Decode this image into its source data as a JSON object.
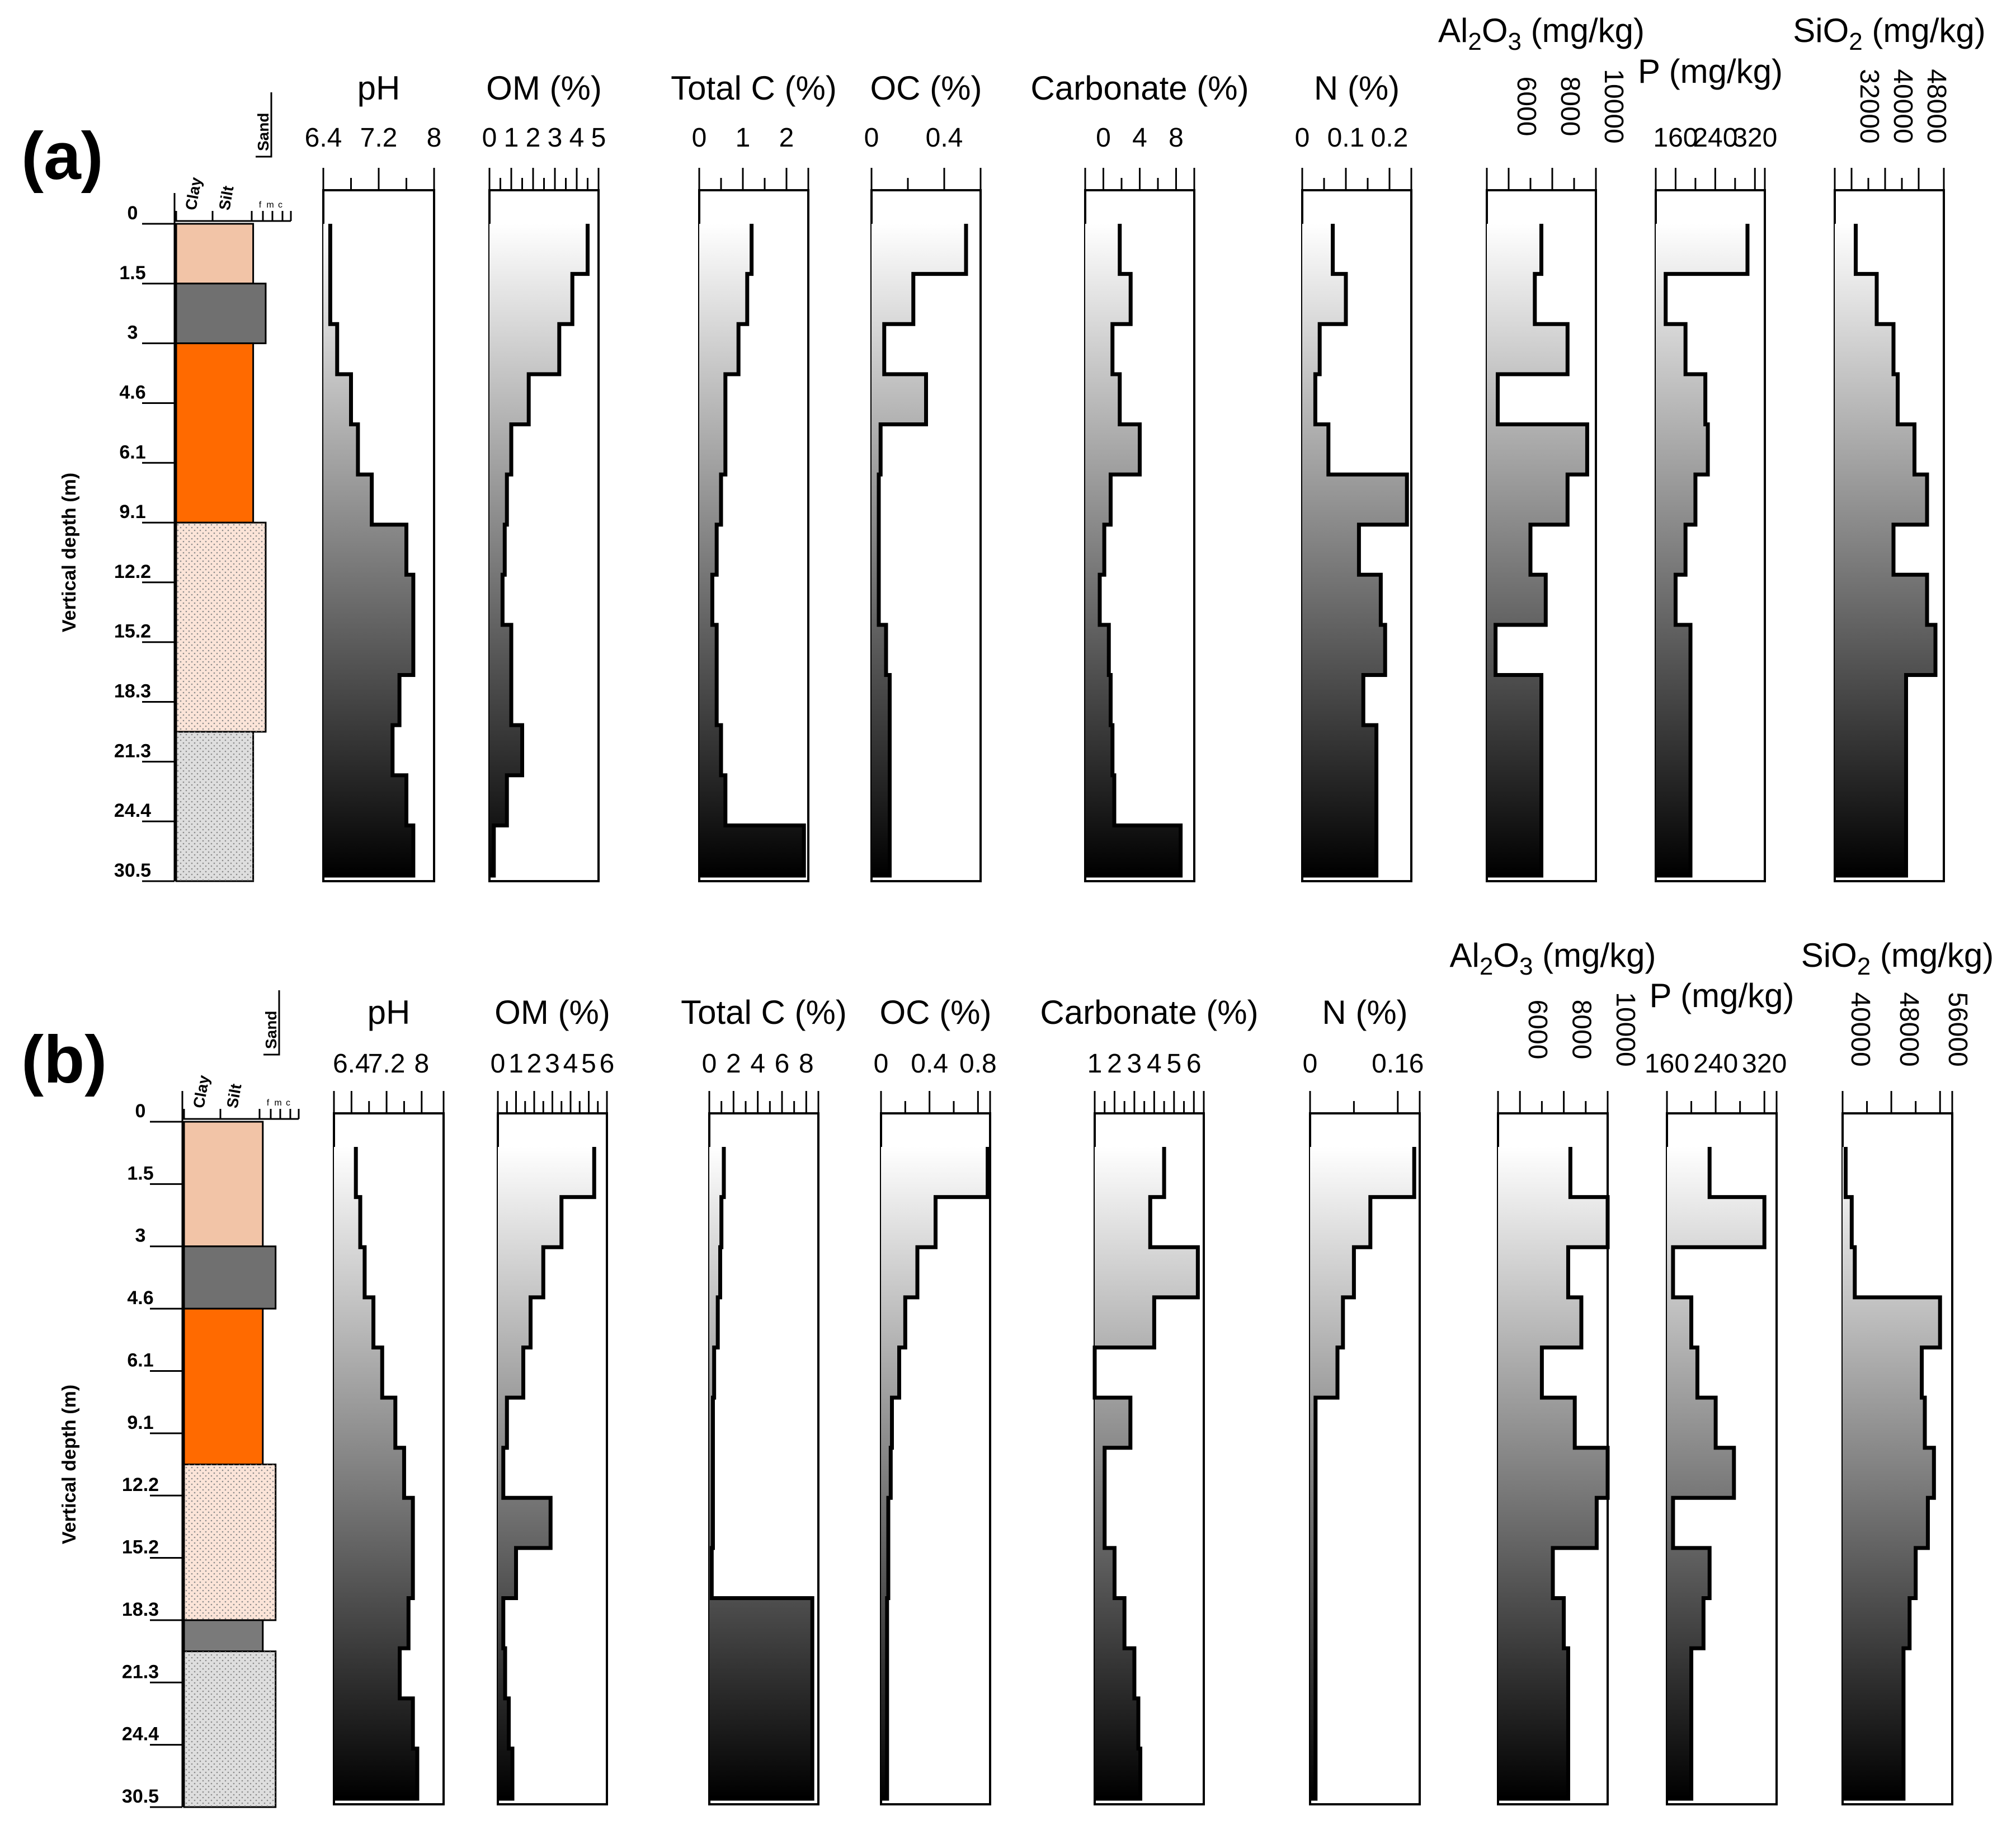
{
  "chart_data": [
    {
      "panel": "(a)",
      "type": "line",
      "ylabel": "Vertical depth (m)",
      "depth_ticks": [
        "0",
        "1.5",
        "3",
        "4.6",
        "6.1",
        "9.1",
        "12.2",
        "15.2",
        "18.3",
        "21.3",
        "24.4",
        "30.5"
      ],
      "lithology_header": {
        "clay": "Clay",
        "silt": "Silt",
        "sand": "Sand",
        "sub": [
          "f",
          "m",
          "c"
        ]
      },
      "lithology": [
        {
          "from": 0,
          "to": 1,
          "color": "#f2c4a7",
          "width": 0.8,
          "pattern": false
        },
        {
          "from": 1,
          "to": 2,
          "color": "#707070",
          "width": 0.93,
          "pattern": false
        },
        {
          "from": 2,
          "to": 5,
          "color": "#ff6a00",
          "width": 0.8,
          "pattern": false
        },
        {
          "from": 5,
          "to": 8.5,
          "color": "#fbe4d8",
          "width": 0.93,
          "pattern": true
        },
        {
          "from": 8.5,
          "to": 11,
          "color": "#dedede",
          "width": 0.8,
          "pattern": true
        }
      ],
      "tracks": [
        {
          "title": "pH",
          "ticks": [
            {
              "value": 6.4,
              "label": "6.4"
            },
            {
              "value": 7.2,
              "label": "7.2"
            },
            {
              "value": 8,
              "label": "8"
            }
          ],
          "xlim": [
            6.4,
            8.0
          ],
          "minor_ticks": [
            6.8,
            7.6
          ],
          "values": [
            6.5,
            6.5,
            6.6,
            6.8,
            6.9,
            7.1,
            7.6,
            7.7,
            7.7,
            7.5,
            7.4,
            7.6,
            7.7
          ]
        },
        {
          "title": "OM (%)",
          "ticks": [
            {
              "value": 0,
              "label": "0"
            },
            {
              "value": 1,
              "label": "1"
            },
            {
              "value": 2,
              "label": "2"
            },
            {
              "value": 3,
              "label": "3"
            },
            {
              "value": 4,
              "label": "4"
            },
            {
              "value": 5,
              "label": "5"
            }
          ],
          "xlim": [
            0,
            5
          ],
          "minor_ticks": [
            0.5,
            1.5,
            2.5,
            3.5,
            4.5
          ],
          "values": [
            4.5,
            3.8,
            3.2,
            1.8,
            1.0,
            0.8,
            0.7,
            0.6,
            1.0,
            1.0,
            1.5,
            0.8,
            0.2
          ]
        },
        {
          "title": "Total C (%)",
          "ticks": [
            {
              "value": 0,
              "label": "0"
            },
            {
              "value": 1,
              "label": "1"
            },
            {
              "value": 2,
              "label": "2"
            }
          ],
          "xlim": [
            0,
            2.5
          ],
          "minor_ticks": [
            0.5,
            1.5
          ],
          "values": [
            1.2,
            1.1,
            0.9,
            0.6,
            0.6,
            0.5,
            0.4,
            0.3,
            0.4,
            0.4,
            0.5,
            0.6,
            2.4
          ]
        },
        {
          "title": "OC (%)",
          "ticks": [
            {
              "value": 0,
              "label": "0"
            },
            {
              "value": 0.4,
              "label": "0.4"
            }
          ],
          "xlim": [
            0,
            0.6
          ],
          "minor_ticks": [
            0.2
          ],
          "values": [
            0.52,
            0.23,
            0.07,
            0.3,
            0.05,
            0.04,
            0.04,
            0.04,
            0.08,
            0.1,
            0.1,
            0.1,
            0.1
          ]
        },
        {
          "title": "Carbonate (%)",
          "ticks": [
            {
              "value": 0,
              "label": "0"
            },
            {
              "value": 4,
              "label": "4"
            },
            {
              "value": 8,
              "label": "8"
            }
          ],
          "xlim": [
            -2,
            10
          ],
          "minor_ticks": [
            2,
            6
          ],
          "values": [
            1.8,
            3.0,
            1.0,
            1.8,
            4.0,
            0.8,
            0.1,
            -0.4,
            0.6,
            0.8,
            1.0,
            1.2,
            8.5
          ]
        },
        {
          "title": "N (%)",
          "ticks": [
            {
              "value": 0,
              "label": "0"
            },
            {
              "value": 0.1,
              "label": "0.1"
            },
            {
              "value": 0.2,
              "label": "0.2"
            }
          ],
          "xlim": [
            0,
            0.25
          ],
          "minor_ticks": [
            0.05,
            0.15
          ],
          "values": [
            0.07,
            0.1,
            0.04,
            0.03,
            0.06,
            0.24,
            0.13,
            0.18,
            0.19,
            0.14,
            0.17,
            0.17,
            0.17
          ]
        },
        {
          "title_parts": [
            {
              "t": "Al"
            },
            {
              "t": "2",
              "sub": true
            },
            {
              "t": "O"
            },
            {
              "t": "3",
              "sub": true
            },
            {
              "t": " (mg/kg)"
            }
          ],
          "rotated_ticks": true,
          "ticks": [
            {
              "value": 6000,
              "label": "6000"
            },
            {
              "value": 8000,
              "label": "8000"
            },
            {
              "value": 10000,
              "label": "10000"
            }
          ],
          "xlim": [
            5000,
            10000
          ],
          "minor_ticks": [
            7000,
            9000
          ],
          "values": [
            7500,
            7200,
            8700,
            5500,
            9600,
            8700,
            7000,
            7700,
            5400,
            7500,
            7500,
            7500,
            7500
          ]
        },
        {
          "title_parts": [
            {
              "t": "P (mg/kg)"
            }
          ],
          "ticks": [
            {
              "value": 160,
              "label": "160"
            },
            {
              "value": 240,
              "label": "240"
            },
            {
              "value": 320,
              "label": "320"
            }
          ],
          "xlim": [
            120,
            340
          ],
          "minor_ticks": [
            200,
            280
          ],
          "values": [
            305,
            140,
            180,
            220,
            225,
            200,
            180,
            160,
            190,
            190,
            190,
            190,
            190
          ]
        },
        {
          "title_parts": [
            {
              "t": "SiO"
            },
            {
              "t": "2",
              "sub": true
            },
            {
              "t": " (mg/kg)"
            }
          ],
          "rotated_ticks": true,
          "ticks": [
            {
              "value": 32000,
              "label": "32000"
            },
            {
              "value": 40000,
              "label": "40000"
            },
            {
              "value": 48000,
              "label": "48000"
            }
          ],
          "xlim": [
            28000,
            54000
          ],
          "minor_ticks": [
            36000,
            44000
          ],
          "values": [
            33000,
            38000,
            42000,
            43000,
            47000,
            50000,
            42000,
            50000,
            52000,
            45000,
            45000,
            45000,
            45000
          ]
        }
      ]
    },
    {
      "panel": "(b)",
      "type": "line",
      "ylabel": "Vertical depth (m)",
      "depth_ticks": [
        "0",
        "1.5",
        "3",
        "4.6",
        "6.1",
        "9.1",
        "12.2",
        "15.2",
        "18.3",
        "21.3",
        "24.4",
        "30.5"
      ],
      "lithology_header": {
        "clay": "Clay",
        "silt": "Silt",
        "sand": "Sand",
        "sub": [
          "f",
          "m",
          "c"
        ]
      },
      "lithology": [
        {
          "from": 0,
          "to": 2,
          "color": "#f2c4a7",
          "width": 0.8,
          "pattern": false
        },
        {
          "from": 2,
          "to": 3,
          "color": "#707070",
          "width": 0.93,
          "pattern": false
        },
        {
          "from": 3,
          "to": 5.5,
          "color": "#ff6a00",
          "width": 0.8,
          "pattern": false
        },
        {
          "from": 5.5,
          "to": 8,
          "color": "#fbe4d8",
          "width": 0.93,
          "pattern": true
        },
        {
          "from": 8,
          "to": 8.5,
          "color": "#7a7a7a",
          "width": 0.8,
          "pattern": false
        },
        {
          "from": 8.5,
          "to": 11,
          "color": "#dedede",
          "width": 0.93,
          "pattern": true
        }
      ],
      "tracks": [
        {
          "title": "pH",
          "ticks": [
            {
              "value": 6.4,
              "label": "6.4"
            },
            {
              "value": 7.2,
              "label": "7.2"
            },
            {
              "value": 8,
              "label": "8"
            }
          ],
          "xlim": [
            6.0,
            8.5
          ],
          "minor_ticks": [
            6.8,
            7.6
          ],
          "values": [
            6.5,
            6.6,
            6.7,
            6.9,
            7.1,
            7.4,
            7.6,
            7.8,
            7.8,
            7.7,
            7.5,
            7.8,
            7.9
          ]
        },
        {
          "title": "OM (%)",
          "ticks": [
            {
              "value": 0,
              "label": "0"
            },
            {
              "value": 1,
              "label": "1"
            },
            {
              "value": 2,
              "label": "2"
            },
            {
              "value": 3,
              "label": "3"
            },
            {
              "value": 4,
              "label": "4"
            },
            {
              "value": 5,
              "label": "5"
            },
            {
              "value": 6,
              "label": "6"
            }
          ],
          "xlim": [
            0,
            6
          ],
          "minor_ticks": [
            0.5,
            1.5,
            2.5,
            3.5,
            4.5,
            5.5
          ],
          "values": [
            5.3,
            3.5,
            2.5,
            1.8,
            1.4,
            0.5,
            0.3,
            2.9,
            1.0,
            0.3,
            0.4,
            0.6,
            0.8
          ]
        },
        {
          "title": "Total C (%)",
          "ticks": [
            {
              "value": 0,
              "label": "0"
            },
            {
              "value": 2,
              "label": "2"
            },
            {
              "value": 4,
              "label": "4"
            },
            {
              "value": 6,
              "label": "6"
            },
            {
              "value": 8,
              "label": "8"
            }
          ],
          "xlim": [
            0,
            9
          ],
          "minor_ticks": [
            1,
            3,
            5,
            7
          ],
          "values": [
            1.2,
            1.0,
            0.9,
            0.7,
            0.4,
            0.3,
            0.3,
            0.3,
            0.2,
            8.5,
            8.5,
            8.5,
            8.5
          ]
        },
        {
          "title": "OC (%)",
          "ticks": [
            {
              "value": 0,
              "label": "0"
            },
            {
              "value": 0.4,
              "label": "0.4"
            },
            {
              "value": 0.8,
              "label": "0.8"
            }
          ],
          "xlim": [
            0,
            0.9
          ],
          "minor_ticks": [
            0.2,
            0.6
          ],
          "values": [
            0.88,
            0.45,
            0.3,
            0.2,
            0.15,
            0.09,
            0.08,
            0.06,
            0.06,
            0.05,
            0.05,
            0.05,
            0.05
          ]
        },
        {
          "title": "Carbonate (%)",
          "ticks": [
            {
              "value": 1,
              "label": "1"
            },
            {
              "value": 2,
              "label": "2"
            },
            {
              "value": 3,
              "label": "3"
            },
            {
              "value": 4,
              "label": "4"
            },
            {
              "value": 5,
              "label": "5"
            },
            {
              "value": 6,
              "label": "6"
            }
          ],
          "xlim": [
            1,
            6.5
          ],
          "minor_ticks": [
            1.5,
            2.5,
            3.5,
            4.5,
            5.5
          ],
          "values": [
            4.5,
            3.8,
            6.2,
            4.0,
            0.9,
            2.8,
            1.5,
            1.5,
            2.0,
            2.5,
            3.0,
            3.2,
            3.3
          ]
        },
        {
          "title": "N (%)",
          "ticks": [
            {
              "value": 0,
              "label": "0"
            },
            {
              "value": 0.16,
              "label": "0.16"
            }
          ],
          "xlim": [
            0,
            0.2
          ],
          "minor_ticks": [
            0.08
          ],
          "values": [
            0.19,
            0.11,
            0.08,
            0.06,
            0.05,
            0.01,
            0.01,
            0.01,
            0.01,
            0.01,
            0.01,
            0.01,
            0.01
          ]
        },
        {
          "title_parts": [
            {
              "t": "Al"
            },
            {
              "t": "2",
              "sub": true
            },
            {
              "t": "O"
            },
            {
              "t": "3",
              "sub": true
            },
            {
              "t": " (mg/kg)"
            }
          ],
          "rotated_ticks": true,
          "ticks": [
            {
              "value": 6000,
              "label": "6000"
            },
            {
              "value": 8000,
              "label": "8000"
            },
            {
              "value": 10000,
              "label": "10000"
            }
          ],
          "xlim": [
            5000,
            10000
          ],
          "minor_ticks": [
            7000,
            9000
          ],
          "values": [
            8300,
            10000,
            8200,
            8800,
            7000,
            8500,
            10000,
            9500,
            7500,
            8000,
            8200,
            8200,
            8200
          ]
        },
        {
          "title_parts": [
            {
              "t": "P (mg/kg)"
            }
          ],
          "ticks": [
            {
              "value": 160,
              "label": "160"
            },
            {
              "value": 240,
              "label": "240"
            },
            {
              "value": 320,
              "label": "320"
            }
          ],
          "xlim": [
            160,
            340
          ],
          "minor_ticks": [
            200,
            280
          ],
          "values": [
            230,
            320,
            170,
            200,
            210,
            240,
            270,
            170,
            230,
            220,
            200,
            200,
            200
          ]
        },
        {
          "title_parts": [
            {
              "t": "SiO"
            },
            {
              "t": "2",
              "sub": true
            },
            {
              "t": " (mg/kg)"
            }
          ],
          "rotated_ticks": true,
          "ticks": [
            {
              "value": 40000,
              "label": "40000"
            },
            {
              "value": 48000,
              "label": "48000"
            },
            {
              "value": 56000,
              "label": "56000"
            }
          ],
          "xlim": [
            40000,
            58000
          ],
          "minor_ticks": [
            44000,
            52000
          ],
          "values": [
            40500,
            41500,
            42000,
            56000,
            53000,
            53500,
            55000,
            54000,
            52000,
            51000,
            50000,
            50000,
            50000
          ]
        }
      ]
    }
  ]
}
